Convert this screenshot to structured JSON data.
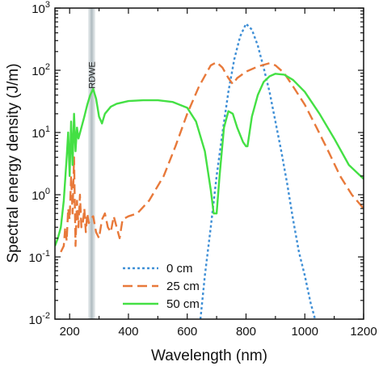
{
  "chart_data": {
    "type": "line",
    "title": "",
    "xlabel": "Wavelength (nm)",
    "ylabel": "Spectral energy density (J/m)",
    "xlim": [
      150,
      1200
    ],
    "ylim": [
      0.01,
      1000
    ],
    "yscale": "log",
    "grid": false,
    "legend_position": "bottom-center",
    "x_ticks": [
      {
        "value": 200,
        "label": "200"
      },
      {
        "value": 400,
        "label": "400"
      },
      {
        "value": 600,
        "label": "600"
      },
      {
        "value": 800,
        "label": "800"
      },
      {
        "value": 1000,
        "label": "1000"
      },
      {
        "value": 1200,
        "label": "1200"
      }
    ],
    "y_ticks": [
      {
        "value": 0.01,
        "base": "10",
        "exp": "-2"
      },
      {
        "value": 0.1,
        "base": "10",
        "exp": "-1"
      },
      {
        "value": 1,
        "base": "10",
        "exp": "0"
      },
      {
        "value": 10,
        "base": "10",
        "exp": "1"
      },
      {
        "value": 100,
        "base": "10",
        "exp": "2"
      },
      {
        "value": 1000,
        "base": "10",
        "exp": "3"
      }
    ],
    "annotation": {
      "text": "RDWE",
      "x_center": 275,
      "x_width": 25
    },
    "series": [
      {
        "name": "0 cm",
        "color": "#3f8fd6",
        "style": "dotted",
        "points": [
          [
            645,
            0.01
          ],
          [
            660,
            0.05
          ],
          [
            680,
            0.3
          ],
          [
            700,
            2
          ],
          [
            720,
            10
          ],
          [
            740,
            45
          ],
          [
            760,
            150
          ],
          [
            780,
            350
          ],
          [
            800,
            560
          ],
          [
            820,
            450
          ],
          [
            840,
            250
          ],
          [
            860,
            110
          ],
          [
            880,
            45
          ],
          [
            900,
            15
          ],
          [
            920,
            5
          ],
          [
            940,
            1.5
          ],
          [
            960,
            0.4
          ],
          [
            980,
            0.12
          ],
          [
            1000,
            0.05
          ],
          [
            1020,
            0.018
          ],
          [
            1035,
            0.01
          ]
        ]
      },
      {
        "name": "25 cm",
        "color": "#e8793a",
        "style": "dashed",
        "points": [
          [
            170,
            0.12
          ],
          [
            180,
            0.15
          ],
          [
            185,
            0.3
          ],
          [
            190,
            0.18
          ],
          [
            195,
            0.6
          ],
          [
            200,
            0.4
          ],
          [
            205,
            2
          ],
          [
            210,
            0.5
          ],
          [
            215,
            4
          ],
          [
            220,
            0.15
          ],
          [
            225,
            0.8
          ],
          [
            230,
            0.3
          ],
          [
            235,
            1.0
          ],
          [
            240,
            0.3
          ],
          [
            245,
            0.35
          ],
          [
            250,
            0.6
          ],
          [
            255,
            0.25
          ],
          [
            260,
            0.5
          ],
          [
            265,
            0.35
          ],
          [
            270,
            0.4
          ],
          [
            280,
            0.45
          ],
          [
            290,
            0.25
          ],
          [
            300,
            0.2
          ],
          [
            310,
            0.4
          ],
          [
            320,
            0.5
          ],
          [
            330,
            0.3
          ],
          [
            340,
            0.25
          ],
          [
            350,
            0.45
          ],
          [
            360,
            0.3
          ],
          [
            370,
            0.2
          ],
          [
            380,
            0.4
          ],
          [
            400,
            0.45
          ],
          [
            430,
            0.5
          ],
          [
            470,
            0.8
          ],
          [
            520,
            2
          ],
          [
            560,
            6
          ],
          [
            600,
            20
          ],
          [
            640,
            55
          ],
          [
            680,
            120
          ],
          [
            700,
            135
          ],
          [
            720,
            110
          ],
          [
            740,
            75
          ],
          [
            755,
            60
          ],
          [
            770,
            75
          ],
          [
            800,
            95
          ],
          [
            840,
            115
          ],
          [
            880,
            130
          ],
          [
            900,
            120
          ],
          [
            930,
            90
          ],
          [
            960,
            55
          ],
          [
            1000,
            28
          ],
          [
            1040,
            12
          ],
          [
            1080,
            5
          ],
          [
            1120,
            2
          ],
          [
            1160,
            1
          ],
          [
            1200,
            0.6
          ]
        ]
      },
      {
        "name": "50 cm",
        "color": "#44e044",
        "style": "solid",
        "points": [
          [
            150,
            0.15
          ],
          [
            160,
            0.2
          ],
          [
            170,
            0.3
          ],
          [
            180,
            0.8
          ],
          [
            190,
            4
          ],
          [
            195,
            10
          ],
          [
            200,
            2
          ],
          [
            205,
            15
          ],
          [
            210,
            3
          ],
          [
            215,
            20
          ],
          [
            220,
            5
          ],
          [
            225,
            12
          ],
          [
            230,
            8
          ],
          [
            240,
            12
          ],
          [
            250,
            18
          ],
          [
            260,
            28
          ],
          [
            270,
            40
          ],
          [
            280,
            50
          ],
          [
            290,
            35
          ],
          [
            300,
            18
          ],
          [
            310,
            14
          ],
          [
            320,
            20
          ],
          [
            340,
            26
          ],
          [
            360,
            29
          ],
          [
            400,
            32
          ],
          [
            450,
            33
          ],
          [
            500,
            33
          ],
          [
            550,
            31
          ],
          [
            600,
            25
          ],
          [
            630,
            15
          ],
          [
            660,
            5
          ],
          [
            680,
            1.2
          ],
          [
            690,
            0.5
          ],
          [
            700,
            0.5
          ],
          [
            710,
            2
          ],
          [
            725,
            12
          ],
          [
            740,
            22
          ],
          [
            755,
            20
          ],
          [
            770,
            12
          ],
          [
            790,
            7
          ],
          [
            800,
            6
          ],
          [
            805,
            6
          ],
          [
            820,
            18
          ],
          [
            840,
            40
          ],
          [
            860,
            65
          ],
          [
            880,
            80
          ],
          [
            900,
            88
          ],
          [
            930,
            85
          ],
          [
            960,
            70
          ],
          [
            1000,
            45
          ],
          [
            1050,
            20
          ],
          [
            1100,
            8
          ],
          [
            1150,
            3
          ],
          [
            1200,
            1.8
          ]
        ]
      }
    ]
  }
}
